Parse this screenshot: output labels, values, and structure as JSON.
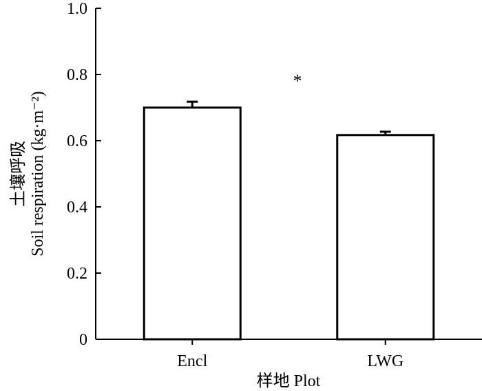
{
  "chart_data": {
    "type": "bar",
    "categories": [
      "Encl",
      "LWG"
    ],
    "values": [
      0.7,
      0.617
    ],
    "error": [
      0.018,
      0.01
    ],
    "ylabel_line1": "土壤呼吸",
    "ylabel_line2": "Soil respiration (kg·m⁻²)",
    "xlabel": "样地 Plot",
    "ylim": [
      0,
      1.0
    ],
    "yticks": [
      "0",
      "0.2",
      "0.4",
      "0.6",
      "0.8",
      "1.0"
    ],
    "annotations": [
      {
        "text": "*"
      }
    ],
    "bar_fill": "#ffffff",
    "bar_stroke": "#000000",
    "grid": false,
    "legend": "none"
  }
}
